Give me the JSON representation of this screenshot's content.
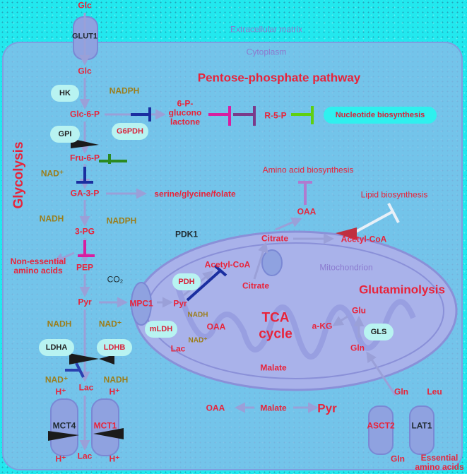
{
  "colors": {
    "background": "#22e8ee",
    "cell": "#8fb8e8",
    "mito": "#9aa6e6",
    "metabolite": "#e8233a",
    "cofactor": "#9b7d1a",
    "inhibit_blue": "#1a2ea0",
    "inhibit_magenta": "#d81ea0",
    "inhibit_green": "#5fd010"
  },
  "regions": {
    "extracellular": "Extracellular matrix",
    "cytoplasm": "Cytoplasm",
    "mitochondrion": "Mitochondrion"
  },
  "pathways": {
    "glycolysis": "Glycolysis",
    "ppp": "Pentose-phosphate pathway",
    "glutaminolysis": "Glutaminolysis",
    "tca_line1": "TCA",
    "tca_line2": "cycle"
  },
  "metabolites": {
    "glc_out": "Glc",
    "glc_in": "Glc",
    "g6p": "Glc-6-P",
    "f6p": "Fru-6-P",
    "ga3p": "GA-3-P",
    "pg3": "3-PG",
    "pep": "PEP",
    "pyr": "Pyr",
    "lac": "Lac",
    "lac_bottom": "Lac",
    "gluconolactone": "6-P-glucono lactone",
    "r5p": "R-5-P",
    "ser_gly_fol": "serine/glycine/folate",
    "ne_aa": "Non-essential amino acids",
    "pyr_mito": "Pyr",
    "lac_mito": "Lac",
    "acetyl_coa_mito": "Acetyl-CoA",
    "citrate_mito": "Citrate",
    "citrate_cyto": "Citrate",
    "acetyl_coa_cyto": "Acetyl-CoA",
    "oaa_cyto": "OAA",
    "oaa_mito": "OAA",
    "oaa_bottom": "OAA",
    "akg": "a-KG",
    "glu": "Glu",
    "gln_mito": "Gln",
    "malate_mito": "Malate",
    "malate_bottom": "Malate",
    "pyr_bottom": "Pyr",
    "gln_top": "Gln",
    "leu": "Leu",
    "gln_bottom": "Gln",
    "essential_aa": "Essential amino acids",
    "h_top": "H⁺",
    "h_top2": "H⁺",
    "h_bottom": "H⁺",
    "h_bottom2": "H⁺"
  },
  "cofactors": {
    "nadph1": "NADPH",
    "nad_plus1": "NAD⁺",
    "nadh1": "NADH",
    "nadph2": "NADPH",
    "co2": "CO₂",
    "nadh2": "NADH",
    "nad_plus2": "NAD⁺",
    "nad_plus3": "NAD⁺",
    "nadh3": "NADH",
    "nadh_mito": "NADH",
    "nad_mito": "NAD⁺"
  },
  "enzymes": {
    "glut1": "GLUT1",
    "hk": "HK",
    "gpi": "GPI",
    "g6pdh": "G6PDH",
    "ldha": "LDHA",
    "ldhb": "LDHB",
    "mct4": "MCT4",
    "mct1": "MCT1",
    "pdk1": "PDK1",
    "pdh": "PDH",
    "mpc1": "MPC1",
    "mldh": "mLDH",
    "gls": "GLS",
    "asct2": "ASCT2",
    "lat1": "LAT1"
  },
  "outputs": {
    "nucleotide": "Nucleotide biosynthesis",
    "amino_acid": "Amino acid biosynthesis",
    "lipid": "Lipid biosynthesis"
  }
}
